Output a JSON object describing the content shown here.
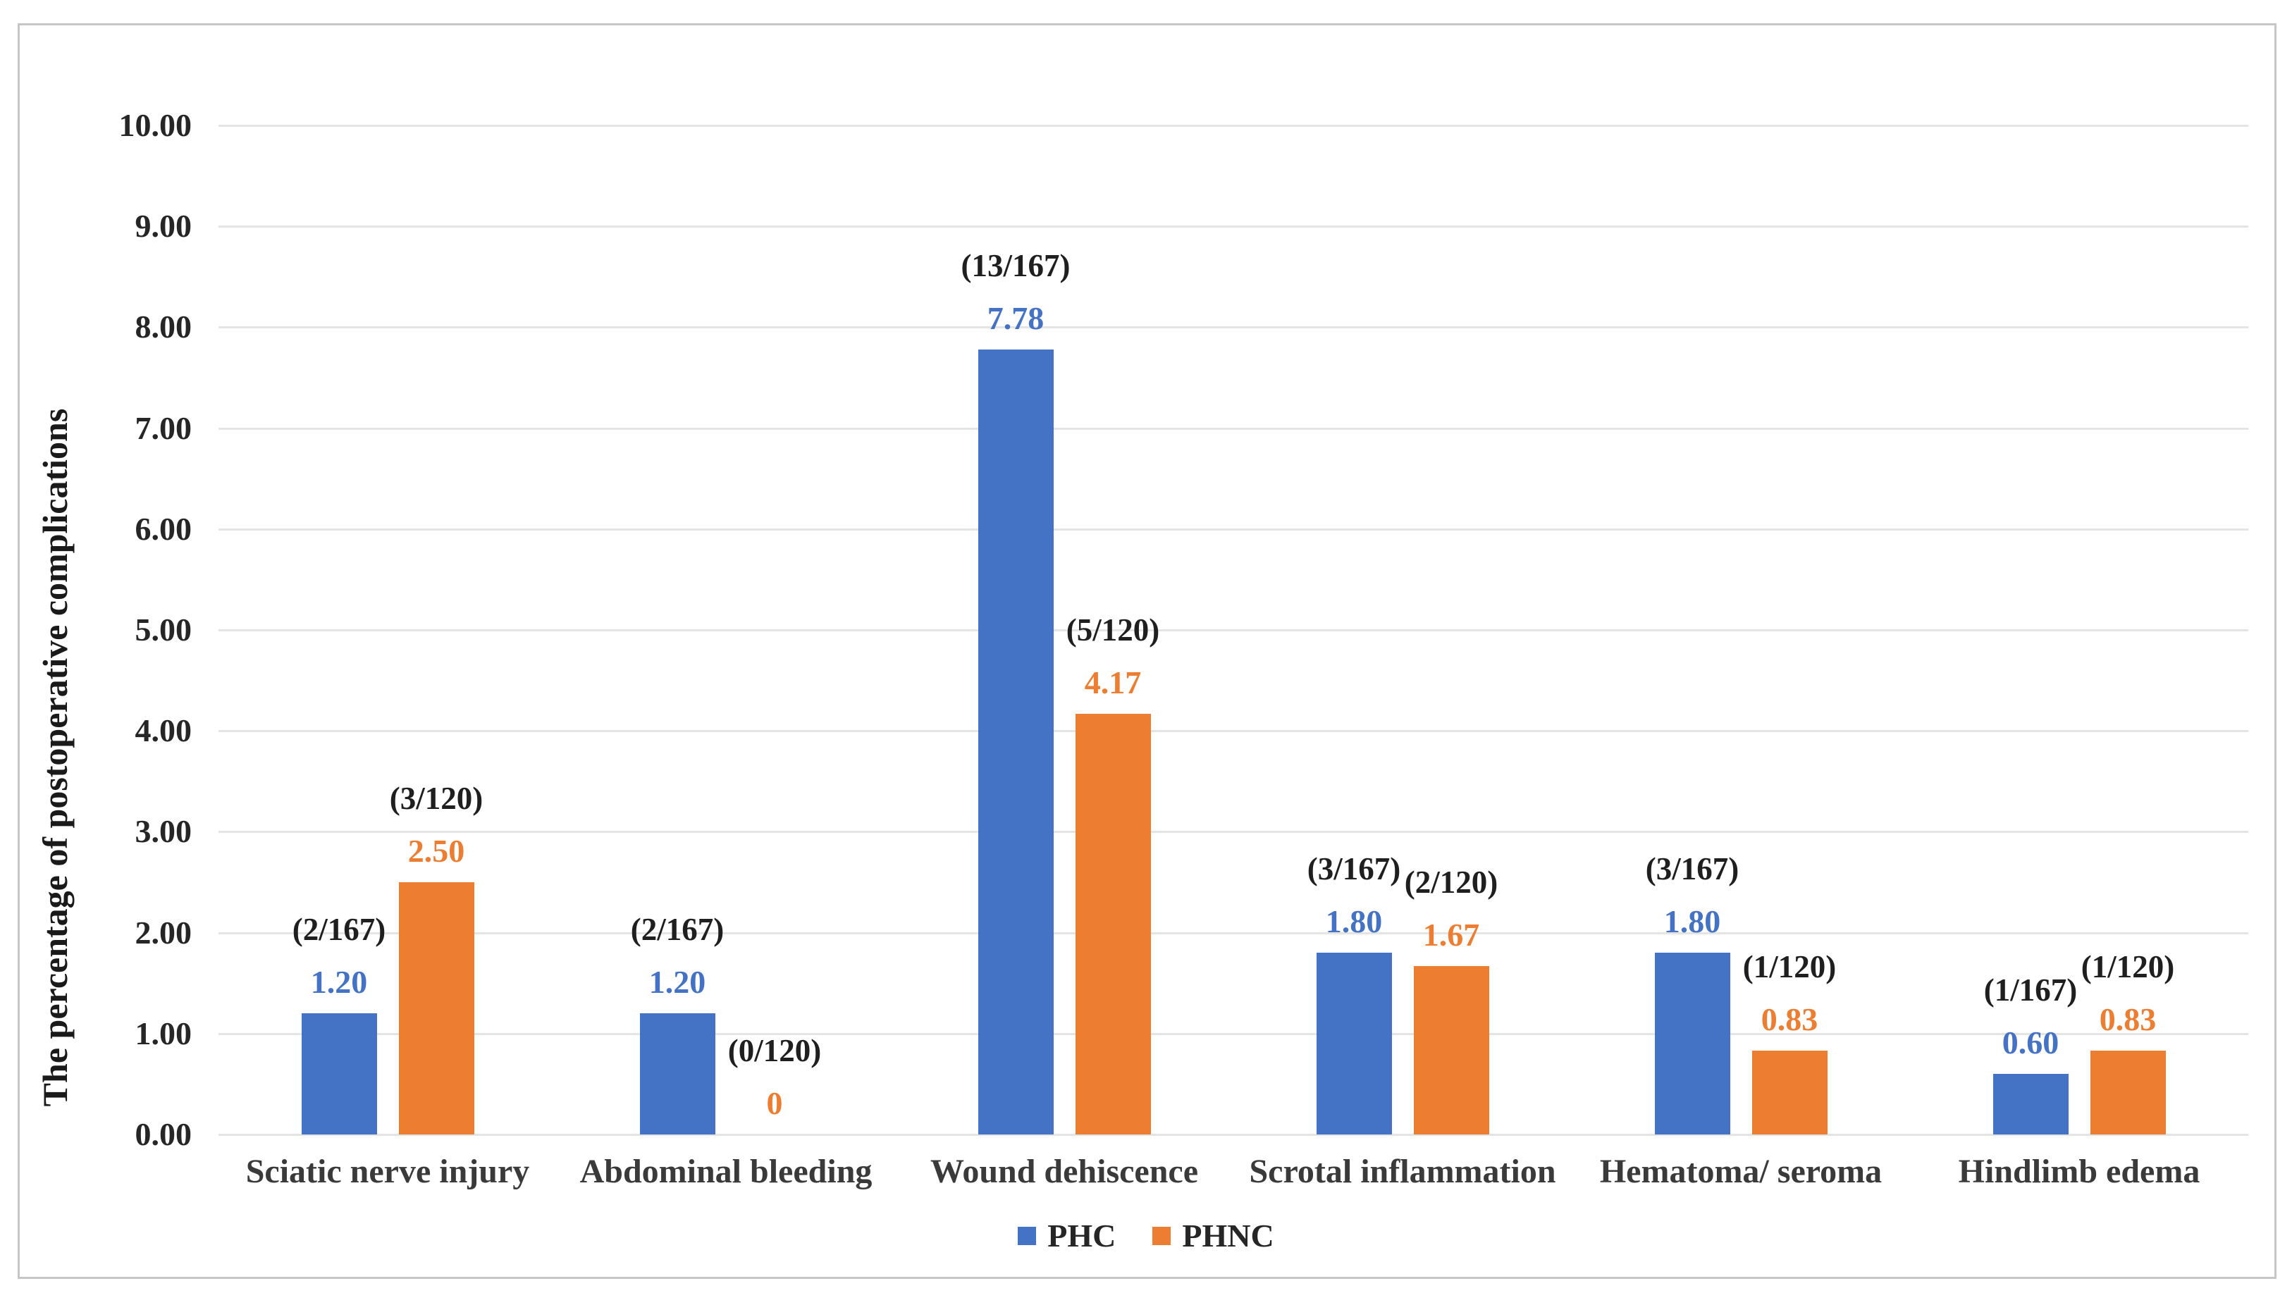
{
  "figure": {
    "background": "#ffffff",
    "border_color": "#c6c6c6",
    "gridline_color": "#e4e4e4",
    "text_color": "#262626"
  },
  "chart_data": {
    "type": "bar",
    "title": "",
    "xlabel": "",
    "ylabel": "The percentage of postoperative complications",
    "ylim": [
      0,
      10
    ],
    "ytick_step": 1,
    "yticks": [
      "0.00",
      "1.00",
      "2.00",
      "3.00",
      "4.00",
      "5.00",
      "6.00",
      "7.00",
      "8.00",
      "9.00",
      "10.00"
    ],
    "grid": true,
    "legend_position": "bottom",
    "categories": [
      "Sciatic nerve injury",
      "Abdominal bleeding",
      "Wound dehiscence",
      "Scrotal inflammation",
      "Hematoma/ seroma",
      "Hindlimb edema"
    ],
    "series": [
      {
        "name": "PHC",
        "color": "#4472C4",
        "values": [
          1.2,
          1.2,
          7.78,
          1.8,
          1.8,
          0.6
        ],
        "value_labels": [
          "1.20",
          "1.20",
          "7.78",
          "1.80",
          "1.80",
          "0.60"
        ],
        "count_labels": [
          "(2/167)",
          "(2/167)",
          "(13/167)",
          "(3/167)",
          "(3/167)",
          "(1/167)"
        ]
      },
      {
        "name": "PHNC",
        "color": "#ED7D31",
        "values": [
          2.5,
          0,
          4.17,
          1.67,
          0.83,
          0.83
        ],
        "value_labels": [
          "2.50",
          "0",
          "4.17",
          "1.67",
          "0.83",
          "0.83"
        ],
        "count_labels": [
          "(3/120)",
          "(0/120)",
          "(5/120)",
          "(2/120)",
          "(1/120)",
          "(1/120)"
        ]
      }
    ]
  }
}
